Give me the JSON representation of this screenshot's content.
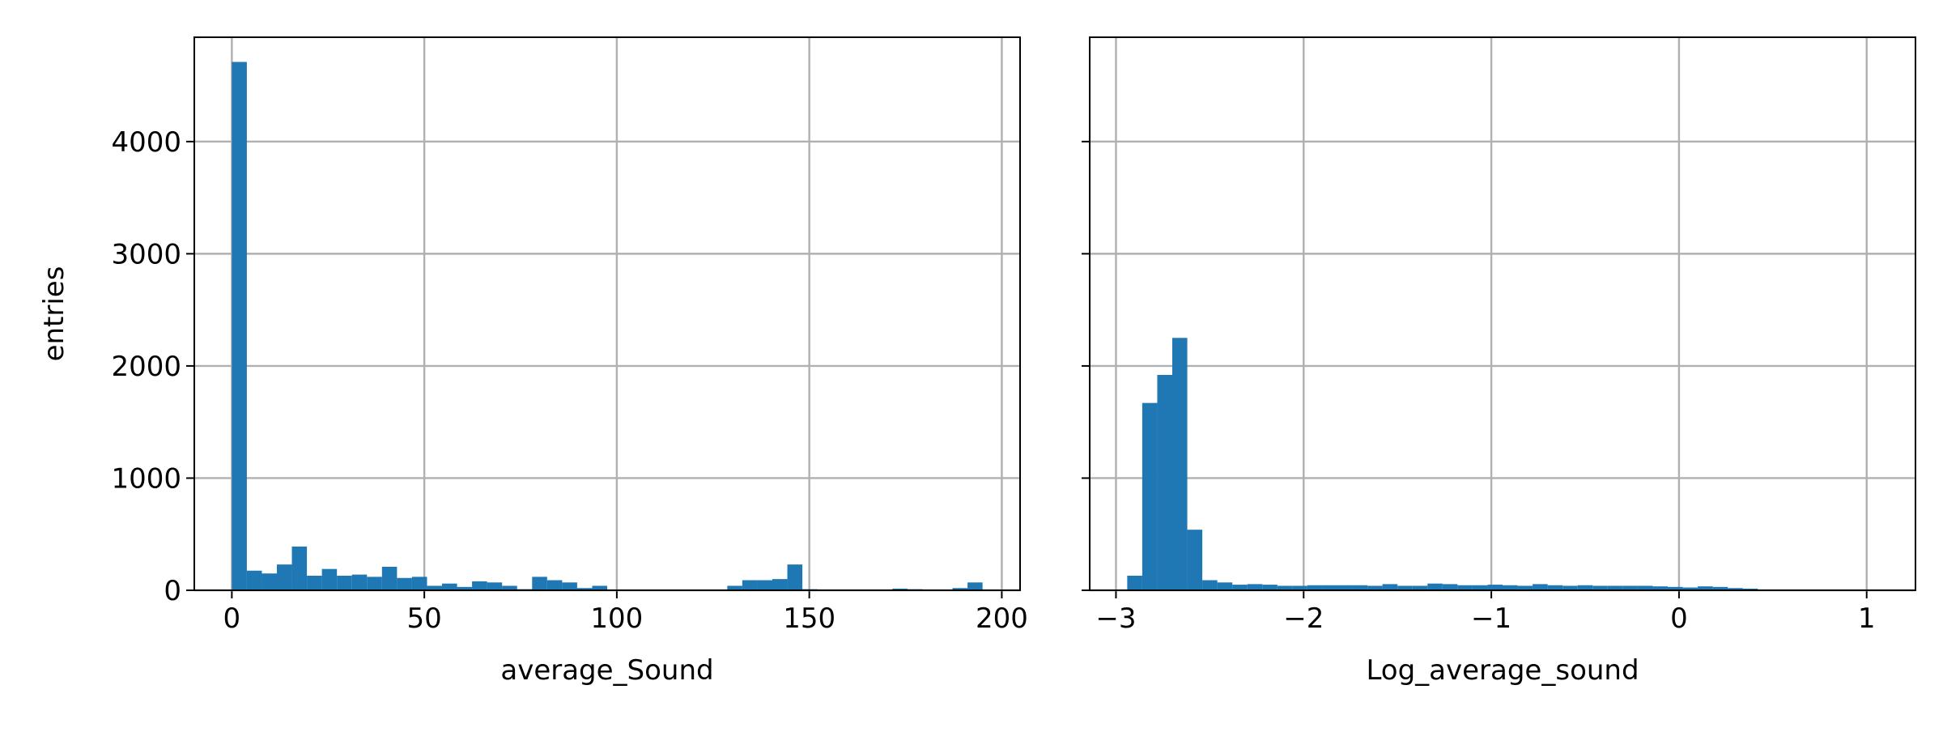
{
  "chart_data": [
    {
      "type": "histogram",
      "xlabel": "average_Sound",
      "ylabel": "entries",
      "color": "#1f77b4",
      "grid": true,
      "bins": [
        0,
        3.9,
        7.8,
        11.7,
        15.6,
        19.5,
        23.4,
        27.3,
        31.2,
        35.1,
        39,
        42.9,
        46.8,
        50.7,
        54.6,
        58.5,
        62.4,
        66.3,
        70.2,
        74.1,
        78,
        81.9,
        85.8,
        89.7,
        93.6,
        97.5,
        101.4,
        105.3,
        109.2,
        113.1,
        117,
        120.9,
        124.8,
        128.7,
        132.6,
        136.5,
        140.4,
        144.3,
        148.2,
        152.1,
        156,
        159.9,
        163.8,
        167.7,
        171.6,
        175.5,
        179.4,
        183.3,
        187.2,
        191.1,
        195
      ],
      "values": [
        4710,
        175,
        150,
        230,
        390,
        130,
        190,
        130,
        140,
        120,
        210,
        110,
        120,
        40,
        60,
        30,
        80,
        70,
        40,
        10,
        120,
        90,
        70,
        20,
        40,
        5,
        5,
        5,
        5,
        5,
        5,
        5,
        5,
        40,
        90,
        90,
        100,
        230,
        10,
        5,
        5,
        5,
        5,
        5,
        15,
        10,
        0,
        5,
        20,
        70
      ],
      "xlim": [
        -9.75,
        204.75
      ],
      "xticks": [
        0,
        50,
        100,
        150,
        200
      ],
      "ylim": [
        0,
        4930
      ],
      "yticks": [
        0,
        1000,
        2000,
        3000,
        4000
      ]
    },
    {
      "type": "histogram",
      "xlabel": "Log_average_sound",
      "color": "#1f77b4",
      "grid": true,
      "sharey": true,
      "bins": [
        -2.94,
        -2.86,
        -2.78,
        -2.7,
        -2.62,
        -2.54,
        -2.46,
        -2.38,
        -2.3,
        -2.22,
        -2.14,
        -2.06,
        -1.98,
        -1.9,
        -1.82,
        -1.74,
        -1.66,
        -1.58,
        -1.5,
        -1.42,
        -1.34,
        -1.26,
        -1.18,
        -1.1,
        -1.02,
        -0.94,
        -0.86,
        -0.78,
        -0.7,
        -0.62,
        -0.54,
        -0.46,
        -0.38,
        -0.3,
        -0.22,
        -0.14,
        -0.06,
        0.02,
        0.1,
        0.18,
        0.26,
        0.34,
        0.42,
        0.5,
        0.58,
        0.66,
        0.74,
        0.82,
        0.9,
        0.98,
        1.06
      ],
      "values": [
        130,
        1670,
        1920,
        2250,
        540,
        90,
        70,
        50,
        55,
        50,
        40,
        40,
        45,
        45,
        45,
        45,
        40,
        55,
        40,
        40,
        60,
        55,
        45,
        45,
        50,
        45,
        40,
        55,
        45,
        40,
        45,
        40,
        40,
        40,
        40,
        35,
        30,
        25,
        35,
        30,
        20,
        15,
        5,
        2,
        0,
        0,
        0,
        0,
        0,
        0
      ],
      "xlim": [
        -3.14,
        1.26
      ],
      "xticks": [
        {
          "value": -3,
          "label": "−3"
        },
        {
          "value": -2,
          "label": "−2"
        },
        {
          "value": -1,
          "label": "−1"
        },
        0,
        1
      ],
      "ylim": [
        0,
        4930
      ],
      "yticks": [
        0,
        1000,
        2000,
        3000,
        4000
      ]
    }
  ]
}
